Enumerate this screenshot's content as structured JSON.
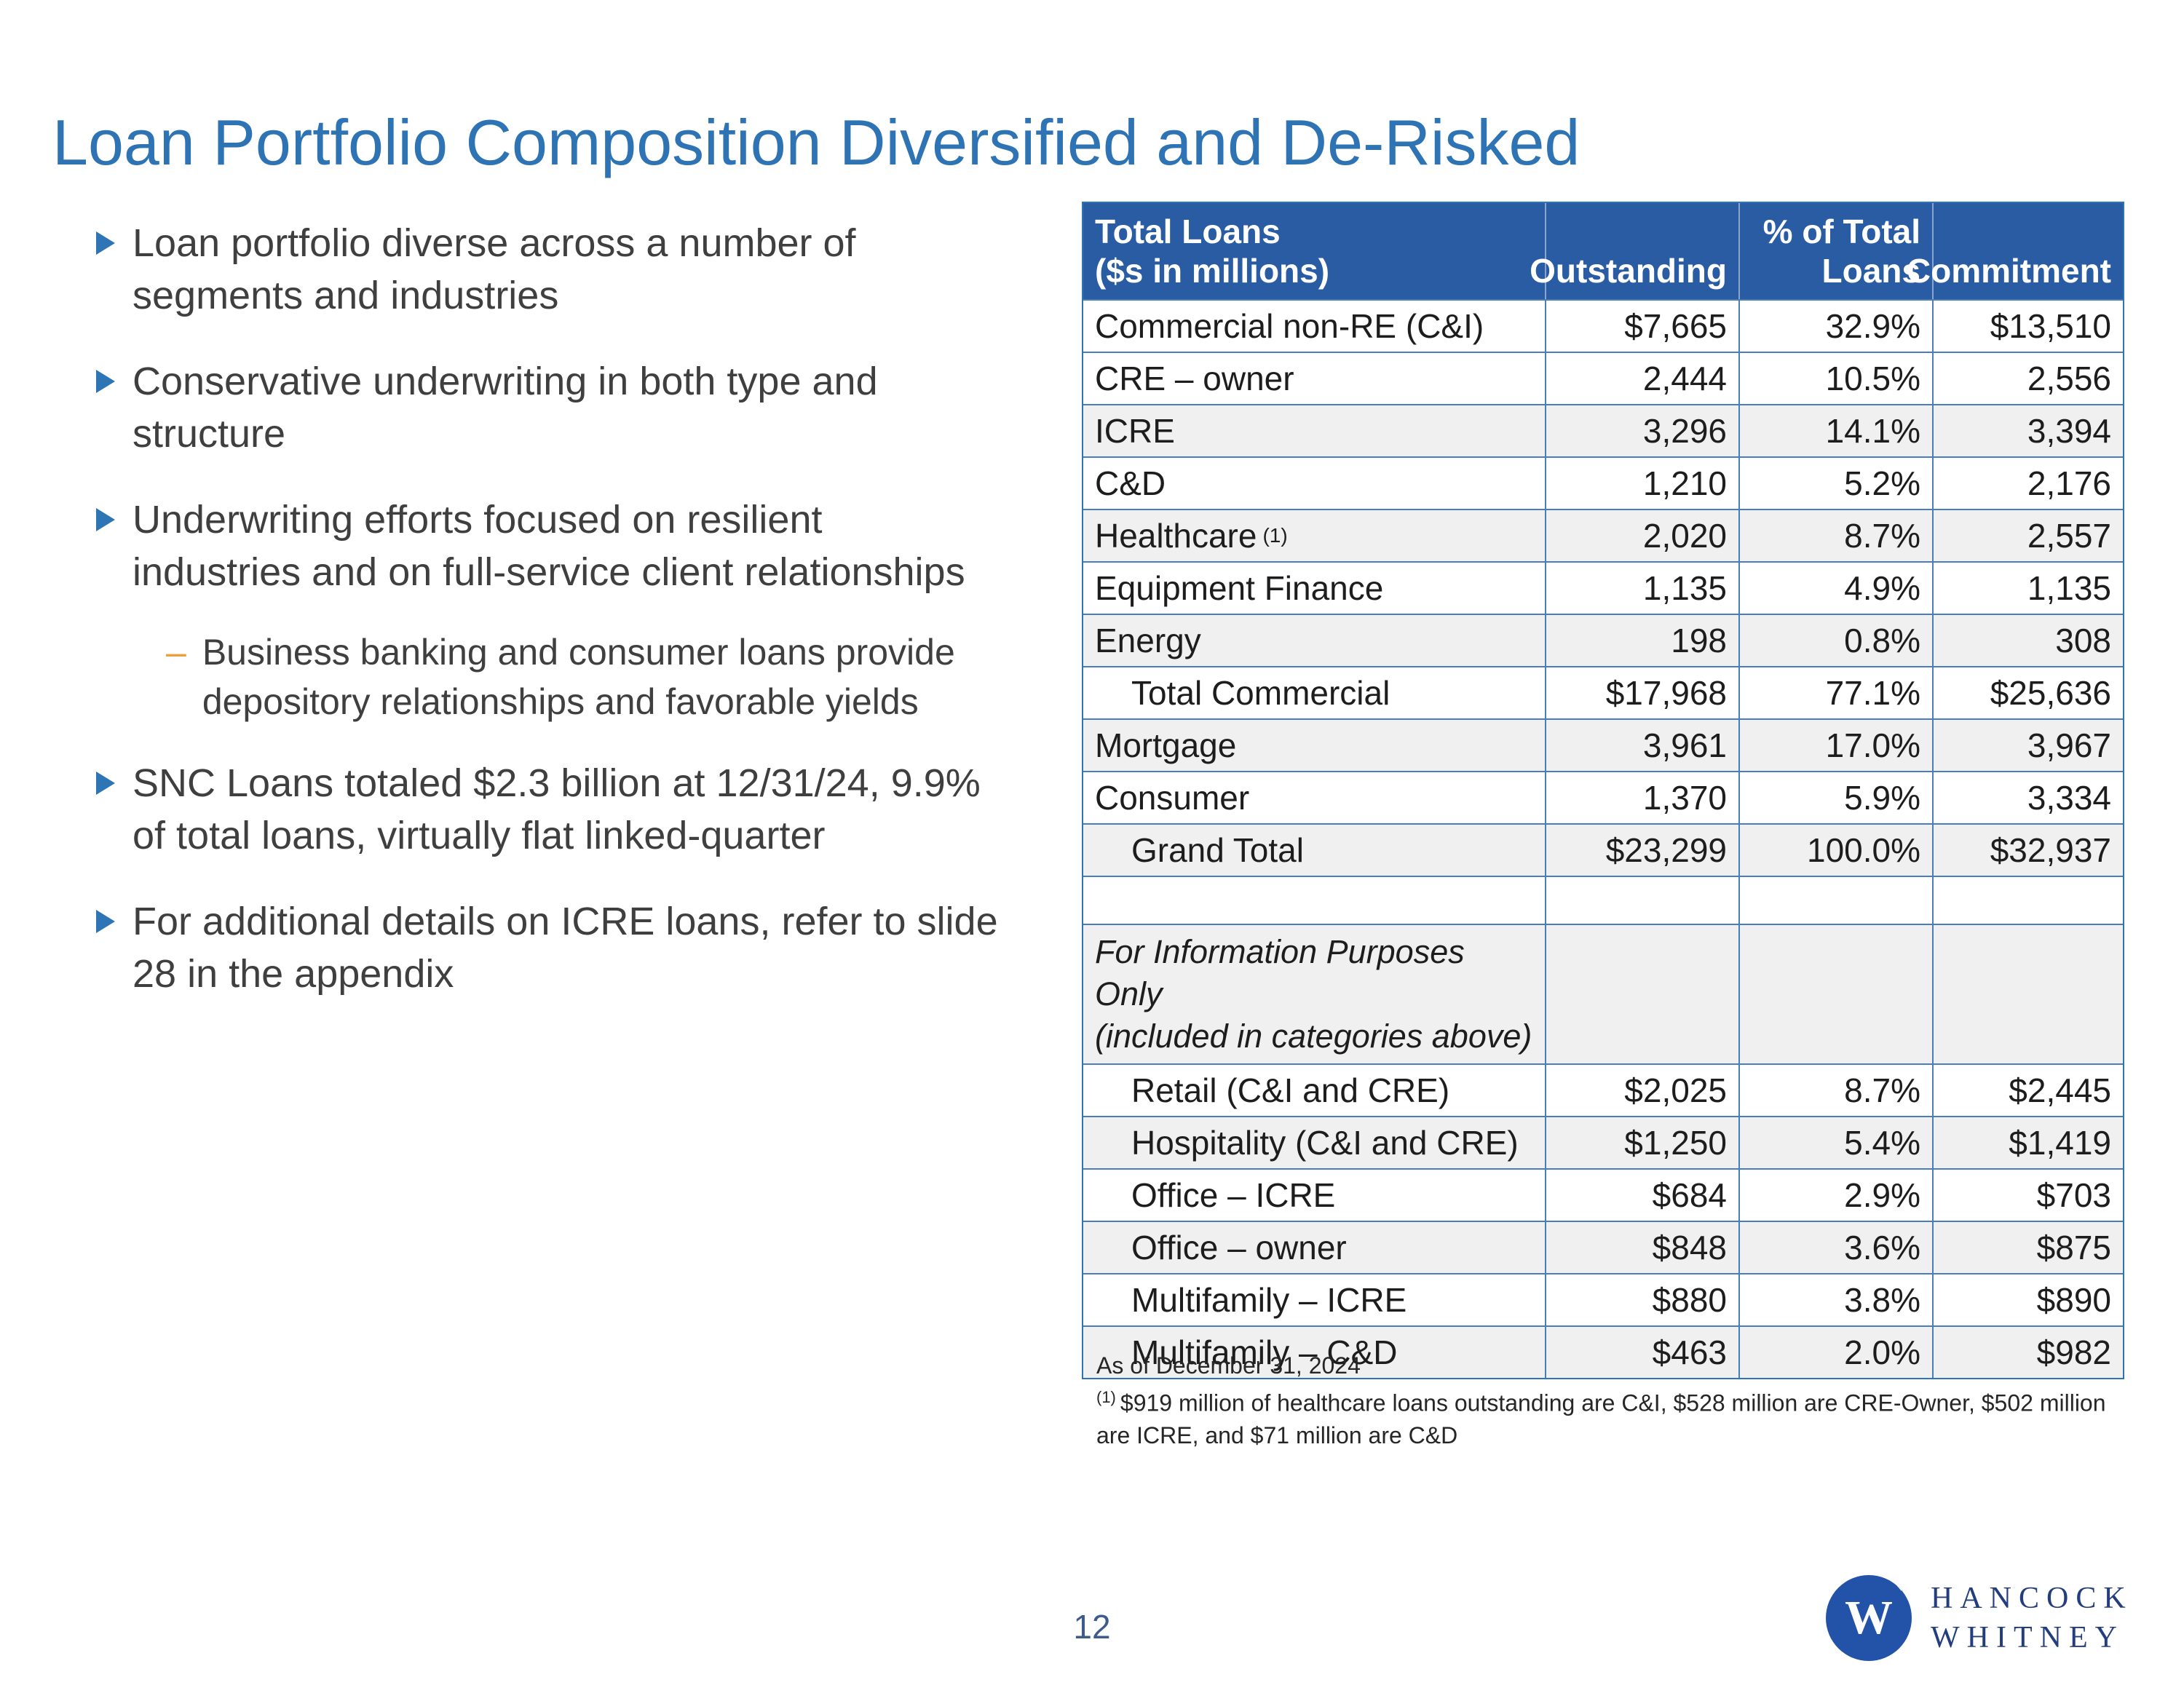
{
  "slide": {
    "title": "Loan Portfolio Composition Diversified and De-Risked",
    "page_number": "12"
  },
  "colors": {
    "title_blue": "#2E74B5",
    "table_header_blue": "#2A5CA4",
    "table_border_blue": "#2E75B6",
    "row_alt_gray": "#F0F0F0",
    "bullet_triangle_blue": "#2E75B6",
    "sub_dash_orange": "#E8A13C",
    "body_text": "#3F3F3F",
    "logo_blue": "#2353A8",
    "logo_wordmark_navy": "#233E7E"
  },
  "bullets": [
    {
      "lines": [
        "Loan portfolio diverse across a number of",
        "segments and industries"
      ]
    },
    {
      "lines": [
        "Conservative underwriting in both type and",
        "structure"
      ]
    },
    {
      "lines": [
        "Underwriting efforts focused on resilient",
        "industries and on full-service client relationships"
      ],
      "sub": [
        {
          "lines": [
            "Business banking and consumer loans provide",
            "depository relationships and favorable yields"
          ]
        }
      ]
    },
    {
      "lines": [
        "SNC Loans totaled $2.3 billion at 12/31/24, 9.9%",
        "of total loans, virtually flat linked-quarter"
      ]
    },
    {
      "lines": [
        "For additional details on ICRE loans, refer to slide",
        "28 in the appendix"
      ]
    }
  ],
  "table": {
    "header": {
      "col1_line1": "Total Loans",
      "col1_line2": "($s in millions)",
      "col2": "Outstanding",
      "col3_line1": "% of Total",
      "col3_line2": "Loans",
      "col4": "Commitment"
    },
    "rows": [
      {
        "label": "Commercial non-RE (C&I)",
        "outstanding": "$7,665",
        "pct": "32.9%",
        "commitment": "$13,510"
      },
      {
        "label": "CRE – owner",
        "outstanding": "2,444",
        "pct": "10.5%",
        "commitment": "2,556"
      },
      {
        "label": "ICRE",
        "outstanding": "3,296",
        "pct": "14.1%",
        "commitment": "3,394",
        "shaded": true
      },
      {
        "label": "C&D",
        "outstanding": "1,210",
        "pct": "5.2%",
        "commitment": "2,176"
      },
      {
        "label": "Healthcare",
        "sup": "(1)",
        "outstanding": "2,020",
        "pct": "8.7%",
        "commitment": "2,557",
        "shaded": true
      },
      {
        "label": "Equipment Finance",
        "outstanding": "1,135",
        "pct": "4.9%",
        "commitment": "1,135"
      },
      {
        "label": "Energy",
        "outstanding": "198",
        "pct": "0.8%",
        "commitment": "308",
        "shaded": true
      },
      {
        "label": "Total Commercial",
        "indent": true,
        "outstanding": "$17,968",
        "pct": "77.1%",
        "commitment": "$25,636"
      },
      {
        "label": "Mortgage",
        "outstanding": "3,961",
        "pct": "17.0%",
        "commitment": "3,967",
        "shaded": true
      },
      {
        "label": "Consumer",
        "outstanding": "1,370",
        "pct": "5.9%",
        "commitment": "3,334"
      },
      {
        "label": "Grand Total",
        "indent": true,
        "outstanding": "$23,299",
        "pct": "100.0%",
        "commitment": "$32,937",
        "shaded": true
      },
      {
        "label": "",
        "outstanding": "",
        "pct": "",
        "commitment": "",
        "empty": true
      }
    ],
    "info_header_lines": [
      "For Information Purposes Only",
      "(included in categories above)"
    ],
    "info_rows": [
      {
        "label": "Retail (C&I and CRE)",
        "indent": true,
        "outstanding": "$2,025",
        "pct": "8.7%",
        "commitment": "$2,445"
      },
      {
        "label": "Hospitality (C&I and CRE)",
        "indent": true,
        "outstanding": "$1,250",
        "pct": "5.4%",
        "commitment": "$1,419",
        "shaded": true
      },
      {
        "label": "Office – ICRE",
        "indent": true,
        "outstanding": "$684",
        "pct": "2.9%",
        "commitment": "$703"
      },
      {
        "label": "Office – owner",
        "indent": true,
        "outstanding": "$848",
        "pct": "3.6%",
        "commitment": "$875",
        "shaded": true
      },
      {
        "label": "Multifamily – ICRE",
        "indent": true,
        "outstanding": "$880",
        "pct": "3.8%",
        "commitment": "$890"
      },
      {
        "label": "Multifamily – C&D",
        "indent": true,
        "outstanding": "$463",
        "pct": "2.0%",
        "commitment": "$982",
        "shaded": true
      }
    ]
  },
  "footnotes": {
    "as_of": "As of December 31, 2024",
    "note1_sup": "(1)",
    "note1_lines": [
      "$919 million of healthcare loans outstanding are C&I, $528 million are CRE-Owner, $502 million",
      "are ICRE, and $71 million are C&D"
    ]
  },
  "logo": {
    "monogram": "W",
    "line1": "HANCOCK",
    "line2": "WHITNEY"
  }
}
